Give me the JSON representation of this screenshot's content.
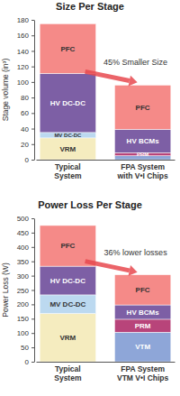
{
  "chart_data": [
    {
      "type": "bar",
      "stacked": true,
      "title": "Size Per Stage",
      "y_label": "Stage volume (in³)",
      "categories": [
        "Typical System",
        "FPA System with V•I Chips"
      ],
      "ylim": [
        0,
        180
      ],
      "yticks": [
        0,
        20,
        40,
        60,
        80,
        100,
        120,
        140,
        160,
        180
      ],
      "annotations": [
        "45% Smaller Size"
      ],
      "series": [
        {
          "name": "VRM",
          "color": "#f5ecbf",
          "values": [
            28,
            null
          ]
        },
        {
          "name": "MV DC-DC",
          "color": "#bcd9f0",
          "values": [
            7,
            null
          ]
        },
        {
          "name": "HV DC-DC",
          "color": "#7d5fa5",
          "values": [
            76,
            null
          ]
        },
        {
          "color": "#8ea6d8",
          "values": [
            null,
            5
          ]
        },
        {
          "name": "PRM",
          "color": "#b8447a",
          "values": [
            null,
            4
          ]
        },
        {
          "name": "HV BCMs",
          "color": "#7d5fa5",
          "values": [
            null,
            30
          ]
        },
        {
          "name": "PFC",
          "color": "#f58a88",
          "values": [
            64,
            57
          ]
        }
      ]
    },
    {
      "type": "bar",
      "stacked": true,
      "title": "Power Loss Per Stage",
      "y_label": "Power Loss (W)",
      "categories": [
        "Typical System",
        "FPA System VTM V•I Chips"
      ],
      "ylim": [
        0,
        500
      ],
      "yticks": [
        0,
        50,
        100,
        150,
        200,
        250,
        300,
        350,
        400,
        450,
        500
      ],
      "annotations": [
        "36% lower losses"
      ],
      "series": [
        {
          "name": "VRM",
          "color": "#f5ecbf",
          "values": [
            168,
            null
          ]
        },
        {
          "name": "MV DC-DC",
          "color": "#bcd9f0",
          "values": [
            65,
            null
          ]
        },
        {
          "name": "HV DC-DC",
          "color": "#7d5fa5",
          "values": [
            100,
            null
          ]
        },
        {
          "name": "VTM",
          "color": "#8ea6d8",
          "values": [
            null,
            103
          ]
        },
        {
          "name": "PRM",
          "color": "#b8447a",
          "values": [
            null,
            45
          ]
        },
        {
          "name": "HV BCMs",
          "color": "#7d5fa5",
          "values": [
            null,
            50
          ]
        },
        {
          "name": "PFC",
          "color": "#f58a88",
          "values": [
            142,
            105
          ]
        }
      ]
    }
  ]
}
